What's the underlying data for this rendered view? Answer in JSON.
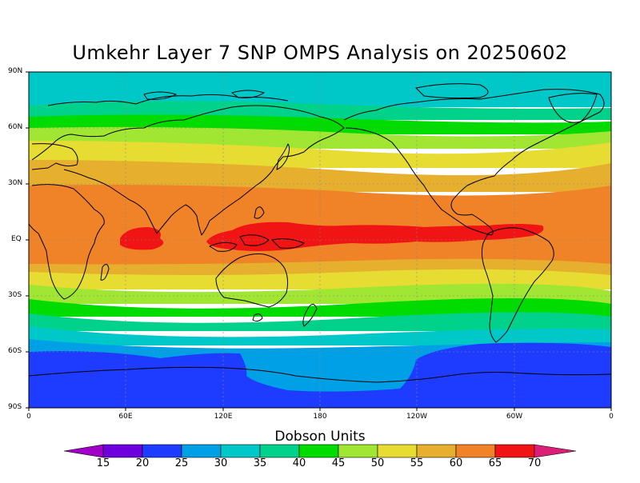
{
  "title": "Umkehr Layer 7 SNP OMPS Analysis on 20250602",
  "map": {
    "lat_ticks": [
      "90N",
      "60N",
      "30N",
      "EQ",
      "30S",
      "60S",
      "90S"
    ],
    "lon_ticks": [
      "0",
      "60E",
      "120E",
      "180",
      "120W",
      "60W",
      "0"
    ],
    "gridlines": true
  },
  "colorbar": {
    "title": "Dobson Units",
    "levels": [
      "15",
      "20",
      "25",
      "30",
      "35",
      "40",
      "45",
      "50",
      "55",
      "60",
      "65",
      "70"
    ],
    "colors": [
      "#a000c8",
      "#6e00dc",
      "#1e3cff",
      "#00a0e6",
      "#00c8c8",
      "#00d28c",
      "#00dc00",
      "#a0e632",
      "#e6dc32",
      "#e6af2d",
      "#f08228",
      "#f01414",
      "#dc1e78"
    ]
  },
  "chart_data": {
    "type": "heatmap",
    "title": "Umkehr Layer 7 SNP OMPS Analysis on 20250602",
    "units": "Dobson Units",
    "lat_range": [
      -90,
      90
    ],
    "lon_range": [
      0,
      360
    ],
    "zonal_profile": [
      {
        "lat": 90,
        "value": 34
      },
      {
        "lat": 75,
        "value": 35
      },
      {
        "lat": 65,
        "value": 41
      },
      {
        "lat": 57,
        "value": 47
      },
      {
        "lat": 50,
        "value": 52
      },
      {
        "lat": 40,
        "value": 56
      },
      {
        "lat": 30,
        "value": 60
      },
      {
        "lat": 15,
        "value": 63
      },
      {
        "lat": 0,
        "value": 66
      },
      {
        "lat": -15,
        "value": 62
      },
      {
        "lat": -25,
        "value": 56
      },
      {
        "lat": -32,
        "value": 50
      },
      {
        "lat": -38,
        "value": 43
      },
      {
        "lat": -45,
        "value": 37
      },
      {
        "lat": -52,
        "value": 31
      },
      {
        "lat": -60,
        "value": 24
      },
      {
        "lat": -90,
        "value": 21
      }
    ],
    "equatorial_max_region": {
      "value": 67,
      "lon_span": [
        "50E",
        "40W"
      ]
    },
    "antarctic_minimum": {
      "value": 21
    }
  }
}
